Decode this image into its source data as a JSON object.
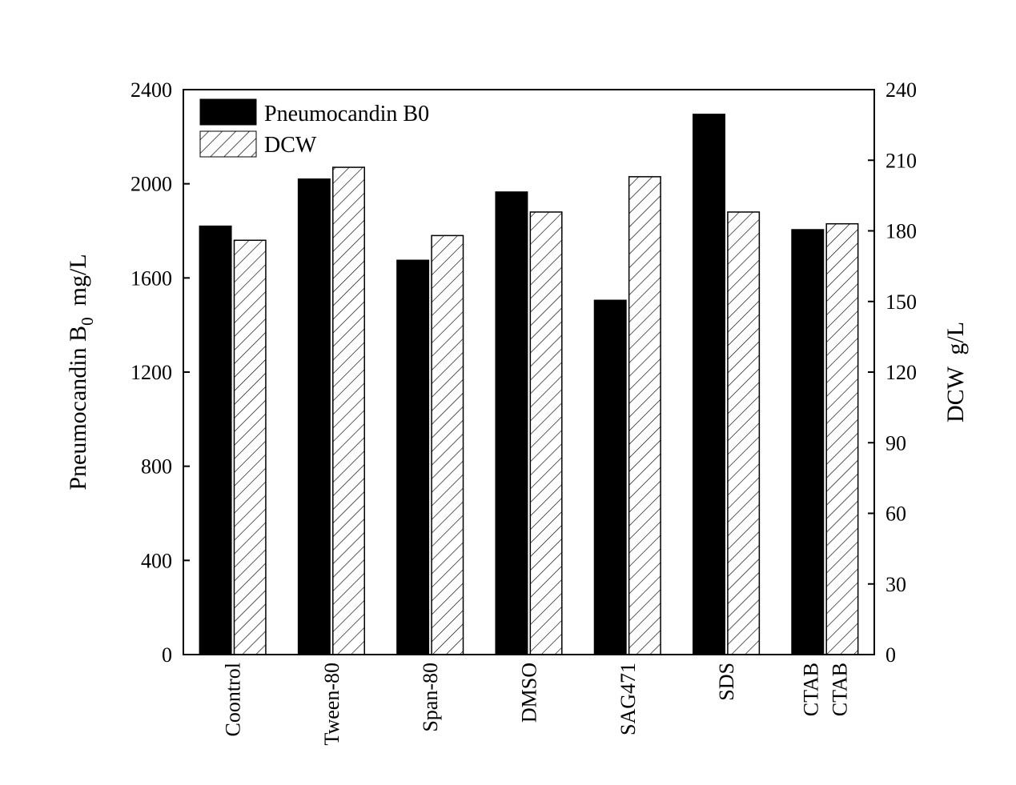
{
  "chart_data": {
    "type": "bar",
    "categories": [
      "Coontrol",
      "Tween-80",
      "Span-80",
      "DMSO",
      "SAG471",
      "SDS",
      "CTAB"
    ],
    "category_labels": [
      [
        "Coontrol"
      ],
      [
        "Tween-80"
      ],
      [
        "Span-80"
      ],
      [
        "DMSO"
      ],
      [
        "SAG471"
      ],
      [
        "SDS"
      ],
      [
        "CTAB",
        "CTAB"
      ]
    ],
    "series": [
      {
        "name": "Pneumocandin B0",
        "axis": "left",
        "values": [
          1820,
          2020,
          1675,
          1965,
          1505,
          2295,
          1805
        ],
        "fill": "#000000"
      },
      {
        "name": "DCW",
        "axis": "right",
        "values": [
          176,
          207,
          178,
          188,
          203,
          188,
          183
        ],
        "fill": "hatch"
      }
    ],
    "y_left": {
      "label_main": "Pneumocandin B",
      "label_sub": "0",
      "label_unit": "mg/L",
      "ylim": [
        0,
        2400
      ],
      "ticks": [
        0,
        400,
        800,
        1200,
        1600,
        2000,
        2400
      ]
    },
    "y_right": {
      "label": "DCW  g/L",
      "ylim": [
        0,
        240
      ],
      "ticks": [
        0,
        30,
        60,
        90,
        120,
        150,
        180,
        210,
        240
      ]
    },
    "legend": {
      "placement": "top-left"
    },
    "grid": false
  }
}
